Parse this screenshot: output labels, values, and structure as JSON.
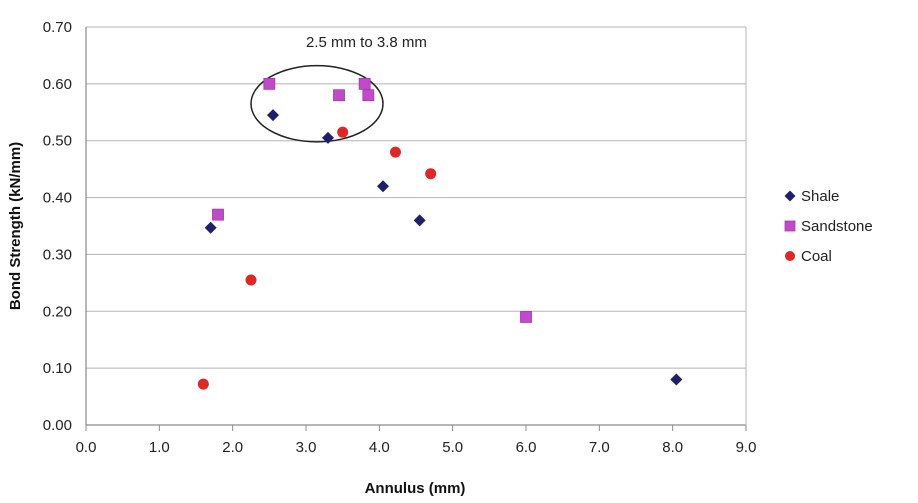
{
  "chart_data": {
    "type": "scatter",
    "xlabel": "Annulus (mm)",
    "ylabel": "Bond Strength (kN/mm)",
    "xlim": [
      0,
      9
    ],
    "ylim": [
      0,
      0.7
    ],
    "xticks": [
      "0.0",
      "1.0",
      "2.0",
      "3.0",
      "4.0",
      "5.0",
      "6.0",
      "7.0",
      "8.0",
      "9.0"
    ],
    "yticks": [
      "0.00",
      "0.10",
      "0.20",
      "0.30",
      "0.40",
      "0.50",
      "0.60",
      "0.70"
    ],
    "grid": "horizontal",
    "legend_position": "right",
    "annotation": {
      "text": "2.5 mm to 3.8 mm",
      "ellipse_center": [
        3.15,
        0.565
      ],
      "ellipse_radii": [
        0.9,
        0.067
      ]
    },
    "series": [
      {
        "name": "Shale",
        "marker": "diamond",
        "color": "#1f1f6b",
        "points": [
          [
            1.7,
            0.347
          ],
          [
            2.55,
            0.545
          ],
          [
            3.3,
            0.505
          ],
          [
            4.05,
            0.42
          ],
          [
            4.55,
            0.36
          ],
          [
            8.05,
            0.08
          ]
        ]
      },
      {
        "name": "Sandstone",
        "marker": "square",
        "color": "#c04ac8",
        "points": [
          [
            1.8,
            0.37
          ],
          [
            2.5,
            0.6
          ],
          [
            3.45,
            0.58
          ],
          [
            3.8,
            0.6
          ],
          [
            3.85,
            0.58
          ],
          [
            6.0,
            0.19
          ]
        ]
      },
      {
        "name": "Coal",
        "marker": "circle",
        "color": "#e02626",
        "points": [
          [
            1.6,
            0.072
          ],
          [
            2.25,
            0.255
          ],
          [
            3.5,
            0.515
          ],
          [
            4.22,
            0.48
          ],
          [
            4.7,
            0.442
          ]
        ]
      }
    ]
  }
}
